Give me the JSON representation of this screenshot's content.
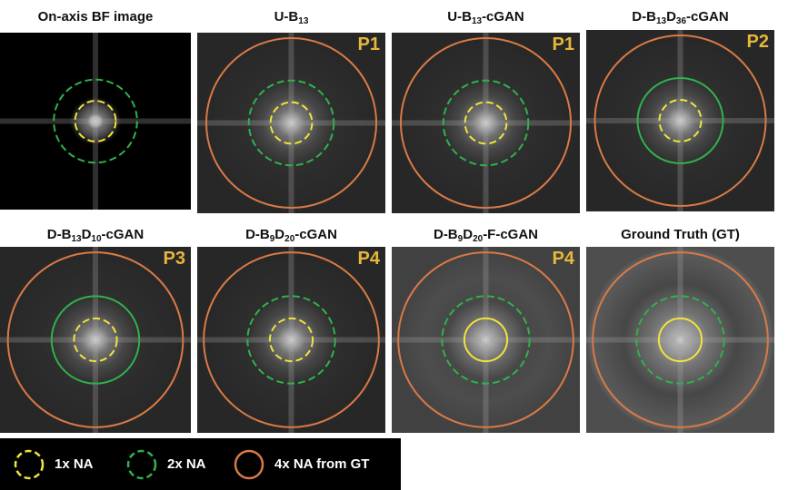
{
  "panels": [
    {
      "title": "On-axis BF image",
      "badge": "",
      "circles": [
        "1x",
        "2x"
      ],
      "spread": "small"
    },
    {
      "title_parts": [
        "U-B",
        "13",
        ""
      ],
      "badge": "P1",
      "circles": [
        "1x",
        "2x",
        "4x"
      ],
      "spread": "mid"
    },
    {
      "title_parts": [
        "U-B",
        "13",
        "-cGAN"
      ],
      "badge": "P1",
      "circles": [
        "1x",
        "2x",
        "4x"
      ],
      "spread": "mid"
    },
    {
      "title_parts": [
        "D-B",
        "13",
        "D",
        "36",
        "-cGAN"
      ],
      "badge": "P2",
      "circles": [
        "1x",
        "2x",
        "4x"
      ],
      "spread": "mid"
    },
    {
      "title_parts": [
        "D-B",
        "13",
        "D",
        "10",
        "-cGAN"
      ],
      "badge": "P3",
      "circles": [
        "1x",
        "2x",
        "4x"
      ],
      "spread": "mid"
    },
    {
      "title_parts": [
        "D-B",
        "9",
        "D",
        "20",
        "-cGAN"
      ],
      "badge": "P4",
      "circles": [
        "1x",
        "2x",
        "4x"
      ],
      "spread": "mid"
    },
    {
      "title_parts": [
        "D-B",
        "9",
        "D",
        "20",
        "-F-cGAN"
      ],
      "badge": "P4",
      "circles": [
        "1x",
        "2x",
        "4x"
      ],
      "spread": "wide"
    },
    {
      "title": "Ground Truth (GT)",
      "badge": "",
      "circles": [
        "1x",
        "2x",
        "4x"
      ],
      "spread": "full"
    }
  ],
  "legend": [
    {
      "label": "1x NA",
      "color": "#f2e33b",
      "style": "dashed"
    },
    {
      "label": "2x NA",
      "color": "#2fb24c",
      "style": "dashed"
    },
    {
      "label": "4x NA from GT",
      "color": "#d97a46",
      "style": "solid"
    }
  ],
  "colors": {
    "one_x": "#f2e33b",
    "two_x": "#2fb24c",
    "four_x": "#d97a46",
    "badge": "#e6b73a"
  }
}
